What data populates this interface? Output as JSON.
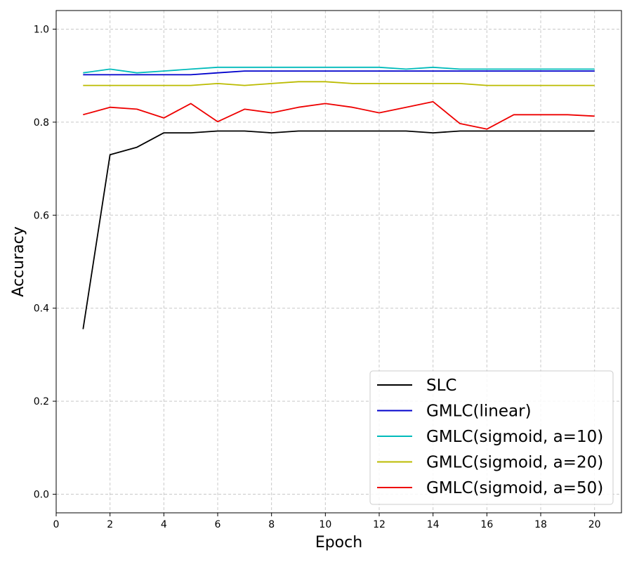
{
  "chart_data": {
    "type": "line",
    "title": "",
    "xlabel": "Epoch",
    "ylabel": "Accuracy",
    "xlim": [
      0,
      21
    ],
    "ylim": [
      -0.04,
      1.04
    ],
    "xticks": [
      0,
      2,
      4,
      6,
      8,
      10,
      12,
      14,
      16,
      18,
      20
    ],
    "xtick_labels": [
      "0",
      "2",
      "4",
      "6",
      "8",
      "10",
      "12",
      "14",
      "16",
      "18",
      "20"
    ],
    "yticks": [
      0.0,
      0.2,
      0.4,
      0.6,
      0.8,
      1.0
    ],
    "ytick_labels": [
      "0.0",
      "0.2",
      "0.4",
      "0.6",
      "0.8",
      "1.0"
    ],
    "grid": true,
    "legend_position": "bottom-right",
    "x": [
      1,
      2,
      3,
      4,
      5,
      6,
      7,
      8,
      9,
      10,
      11,
      12,
      13,
      14,
      15,
      16,
      17,
      18,
      19,
      20
    ],
    "series": [
      {
        "name": "SLC",
        "color": "#000000",
        "values": [
          0.355,
          0.73,
          0.746,
          0.777,
          0.777,
          0.781,
          0.781,
          0.777,
          0.781,
          0.781,
          0.781,
          0.781,
          0.781,
          0.777,
          0.781,
          0.781,
          0.781,
          0.781,
          0.781,
          0.781
        ]
      },
      {
        "name": "GMLC(linear)",
        "color": "#0000cc",
        "values": [
          0.902,
          0.902,
          0.902,
          0.902,
          0.902,
          0.906,
          0.91,
          0.91,
          0.91,
          0.91,
          0.91,
          0.91,
          0.91,
          0.91,
          0.91,
          0.91,
          0.91,
          0.91,
          0.91,
          0.91
        ]
      },
      {
        "name": "GMLC(sigmoid, a=10)",
        "color": "#00bbbb",
        "values": [
          0.906,
          0.914,
          0.906,
          0.91,
          0.914,
          0.918,
          0.918,
          0.918,
          0.918,
          0.918,
          0.918,
          0.918,
          0.914,
          0.918,
          0.914,
          0.914,
          0.914,
          0.914,
          0.914,
          0.914
        ]
      },
      {
        "name": "GMLC(sigmoid, a=20)",
        "color": "#bbbb00",
        "values": [
          0.879,
          0.879,
          0.879,
          0.879,
          0.879,
          0.883,
          0.879,
          0.883,
          0.887,
          0.887,
          0.883,
          0.883,
          0.883,
          0.883,
          0.883,
          0.879,
          0.879,
          0.879,
          0.879,
          0.879
        ]
      },
      {
        "name": "GMLC(sigmoid, a=50)",
        "color": "#ee0000",
        "values": [
          0.816,
          0.832,
          0.828,
          0.809,
          0.84,
          0.801,
          0.828,
          0.82,
          0.832,
          0.84,
          0.832,
          0.82,
          0.832,
          0.844,
          0.797,
          0.785,
          0.816,
          0.816,
          0.816,
          0.813
        ]
      }
    ]
  }
}
